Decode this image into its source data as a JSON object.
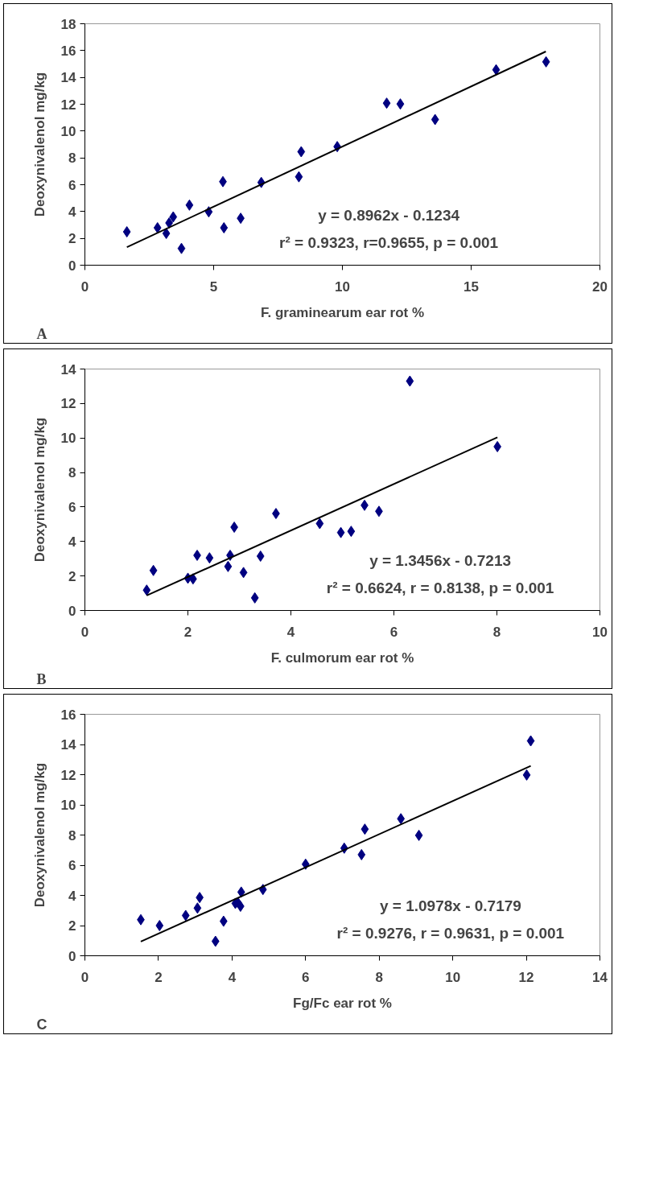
{
  "chart_data": [
    {
      "type": "scatter",
      "xlabel": "F. graminearum ear rot %",
      "ylabel": "Deoxynivalenol mg/kg",
      "xlim": [
        0,
        20
      ],
      "ylim": [
        0,
        18
      ],
      "xticks": [
        0,
        5,
        10,
        15,
        20
      ],
      "yticks": [
        0,
        2,
        4,
        6,
        8,
        10,
        12,
        14,
        16,
        18
      ],
      "grid": false,
      "marker": "diamond",
      "annotations": [
        "A",
        "y = 0.8962x - 0.1234",
        "r² = 0.9323, r=0.9655, p = 0.001"
      ],
      "series": [
        {
          "type": "scatter",
          "color": "#000080",
          "x": [
            1.63,
            2.82,
            3.16,
            3.27,
            3.43,
            3.75,
            4.06,
            4.81,
            5.36,
            5.4,
            6.05,
            6.85,
            8.31,
            8.4,
            9.8,
            11.72,
            12.25,
            13.6,
            15.97,
            17.91
          ],
          "values": [
            2.49,
            2.79,
            2.37,
            3.15,
            3.6,
            1.25,
            4.48,
            3.98,
            6.23,
            2.79,
            3.5,
            6.17,
            6.59,
            8.46,
            8.84,
            12.08,
            12.02,
            10.86,
            14.57,
            15.16
          ]
        },
        {
          "type": "line",
          "color": "#000000",
          "marker": "none",
          "x": [
            1.63,
            17.9
          ],
          "values": [
            1.34,
            15.93
          ]
        }
      ]
    },
    {
      "type": "scatter",
      "xlabel": "F. culmorum ear rot %",
      "ylabel": "Deoxynivalenol mg/kg",
      "xlim": [
        0,
        10
      ],
      "ylim": [
        0,
        14
      ],
      "xticks": [
        0,
        2,
        4,
        6,
        8,
        10
      ],
      "yticks": [
        0,
        2,
        4,
        6,
        8,
        10,
        12,
        14
      ],
      "grid": false,
      "marker": "diamond",
      "annotations": [
        "B",
        "y = 1.3456x - 0.7213",
        "r² = 0.6624, r = 0.8138, p = 0.001"
      ],
      "series": [
        {
          "type": "scatter",
          "color": "#000080",
          "x": [
            1.2,
            1.33,
            2.0,
            2.1,
            2.18,
            2.42,
            2.78,
            2.82,
            2.9,
            3.08,
            3.3,
            3.41,
            3.71,
            4.56,
            4.97,
            5.17,
            5.43,
            5.71,
            6.31,
            8.01
          ],
          "values": [
            1.18,
            2.32,
            1.87,
            1.83,
            3.2,
            3.05,
            2.55,
            3.2,
            4.83,
            2.2,
            0.73,
            3.15,
            5.62,
            5.04,
            4.52,
            4.59,
            6.1,
            5.75,
            13.3,
            9.5
          ]
        },
        {
          "type": "line",
          "color": "#000000",
          "marker": "none",
          "x": [
            1.2,
            8.01
          ],
          "values": [
            0.87,
            10.04
          ]
        }
      ]
    },
    {
      "type": "scatter",
      "xlabel": "Fg/Fc ear rot %",
      "ylabel": "Deoxynivalenol mg/kg",
      "xlim": [
        0,
        14
      ],
      "ylim": [
        0,
        16
      ],
      "xticks": [
        0,
        2,
        4,
        6,
        8,
        10,
        12,
        14
      ],
      "yticks": [
        0,
        2,
        4,
        6,
        8,
        10,
        12,
        14,
        16
      ],
      "grid": false,
      "marker": "diamond",
      "annotations": [
        "C",
        "y = 1.0978x - 0.7179",
        "r² = 0.9276, r = 0.9631, p = 0.001"
      ],
      "series": [
        {
          "type": "scatter",
          "color": "#000080",
          "x": [
            1.52,
            2.03,
            2.74,
            3.06,
            3.12,
            3.55,
            3.77,
            4.09,
            4.16,
            4.23,
            4.25,
            4.84,
            6.0,
            7.05,
            7.52,
            7.61,
            8.59,
            9.08,
            12.01,
            12.12
          ],
          "values": [
            2.39,
            2.0,
            2.67,
            3.16,
            3.86,
            0.96,
            2.29,
            3.47,
            3.52,
            3.28,
            4.22,
            4.39,
            6.07,
            7.13,
            6.7,
            8.39,
            9.08,
            7.98,
            11.98,
            14.24
          ]
        },
        {
          "type": "line",
          "color": "#000000",
          "marker": "none",
          "x": [
            1.52,
            12.12
          ],
          "values": [
            0.94,
            12.58
          ]
        }
      ]
    }
  ]
}
